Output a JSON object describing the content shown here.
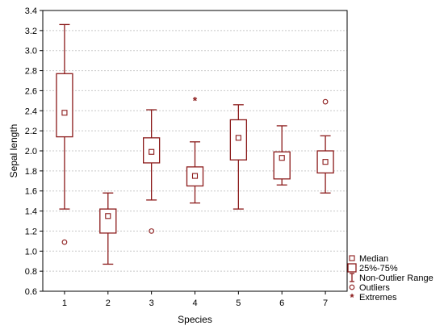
{
  "chart_data": {
    "type": "box",
    "title": "",
    "xlabel": "Species",
    "ylabel": "Sepal length",
    "ylim": [
      0.6,
      3.4
    ],
    "yticks": [
      0.6,
      0.8,
      1.0,
      1.2,
      1.4,
      1.6,
      1.8,
      2.0,
      2.2,
      2.4,
      2.6,
      2.8,
      3.0,
      3.2,
      3.4
    ],
    "ytick_labels": [
      "0.6",
      "0.8",
      "1.0",
      "1.2",
      "1.4",
      "1.6",
      "1.8",
      "2.0",
      "2.2",
      "2.4",
      "2.6",
      "2.8",
      "3.0",
      "3.2",
      "3.4"
    ],
    "categories": [
      "1",
      "2",
      "3",
      "4",
      "5",
      "6",
      "7"
    ],
    "grid": "horizontal dashed",
    "legend_position": "right-bottom",
    "color": "#8b1a1a",
    "boxes": [
      {
        "category": "1",
        "median": 2.38,
        "q1": 2.14,
        "q3": 2.77,
        "whisker_low": 1.42,
        "whisker_high": 3.26,
        "outliers": [
          1.09
        ],
        "extremes": []
      },
      {
        "category": "2",
        "median": 1.35,
        "q1": 1.18,
        "q3": 1.42,
        "whisker_low": 0.87,
        "whisker_high": 1.58,
        "outliers": [],
        "extremes": []
      },
      {
        "category": "3",
        "median": 1.99,
        "q1": 1.88,
        "q3": 2.13,
        "whisker_low": 1.51,
        "whisker_high": 2.41,
        "outliers": [
          1.2
        ],
        "extremes": []
      },
      {
        "category": "4",
        "median": 1.75,
        "q1": 1.65,
        "q3": 1.84,
        "whisker_low": 1.48,
        "whisker_high": 2.09,
        "outliers": [],
        "extremes": [
          2.51
        ]
      },
      {
        "category": "5",
        "median": 2.13,
        "q1": 1.91,
        "q3": 2.31,
        "whisker_low": 1.42,
        "whisker_high": 2.46,
        "outliers": [],
        "extremes": []
      },
      {
        "category": "6",
        "median": 1.93,
        "q1": 1.72,
        "q3": 1.99,
        "whisker_low": 1.66,
        "whisker_high": 2.25,
        "outliers": [],
        "extremes": []
      },
      {
        "category": "7",
        "median": 1.89,
        "q1": 1.78,
        "q3": 2.0,
        "whisker_low": 1.58,
        "whisker_high": 2.15,
        "outliers": [
          2.49
        ],
        "extremes": []
      }
    ],
    "legend": [
      {
        "symbol": "median",
        "label": "Median"
      },
      {
        "symbol": "box",
        "label": "25%-75%"
      },
      {
        "symbol": "whisker",
        "label": "Non-Outlier Range"
      },
      {
        "symbol": "outlier",
        "label": "Outliers"
      },
      {
        "symbol": "extreme",
        "label": "Extremes"
      }
    ]
  }
}
